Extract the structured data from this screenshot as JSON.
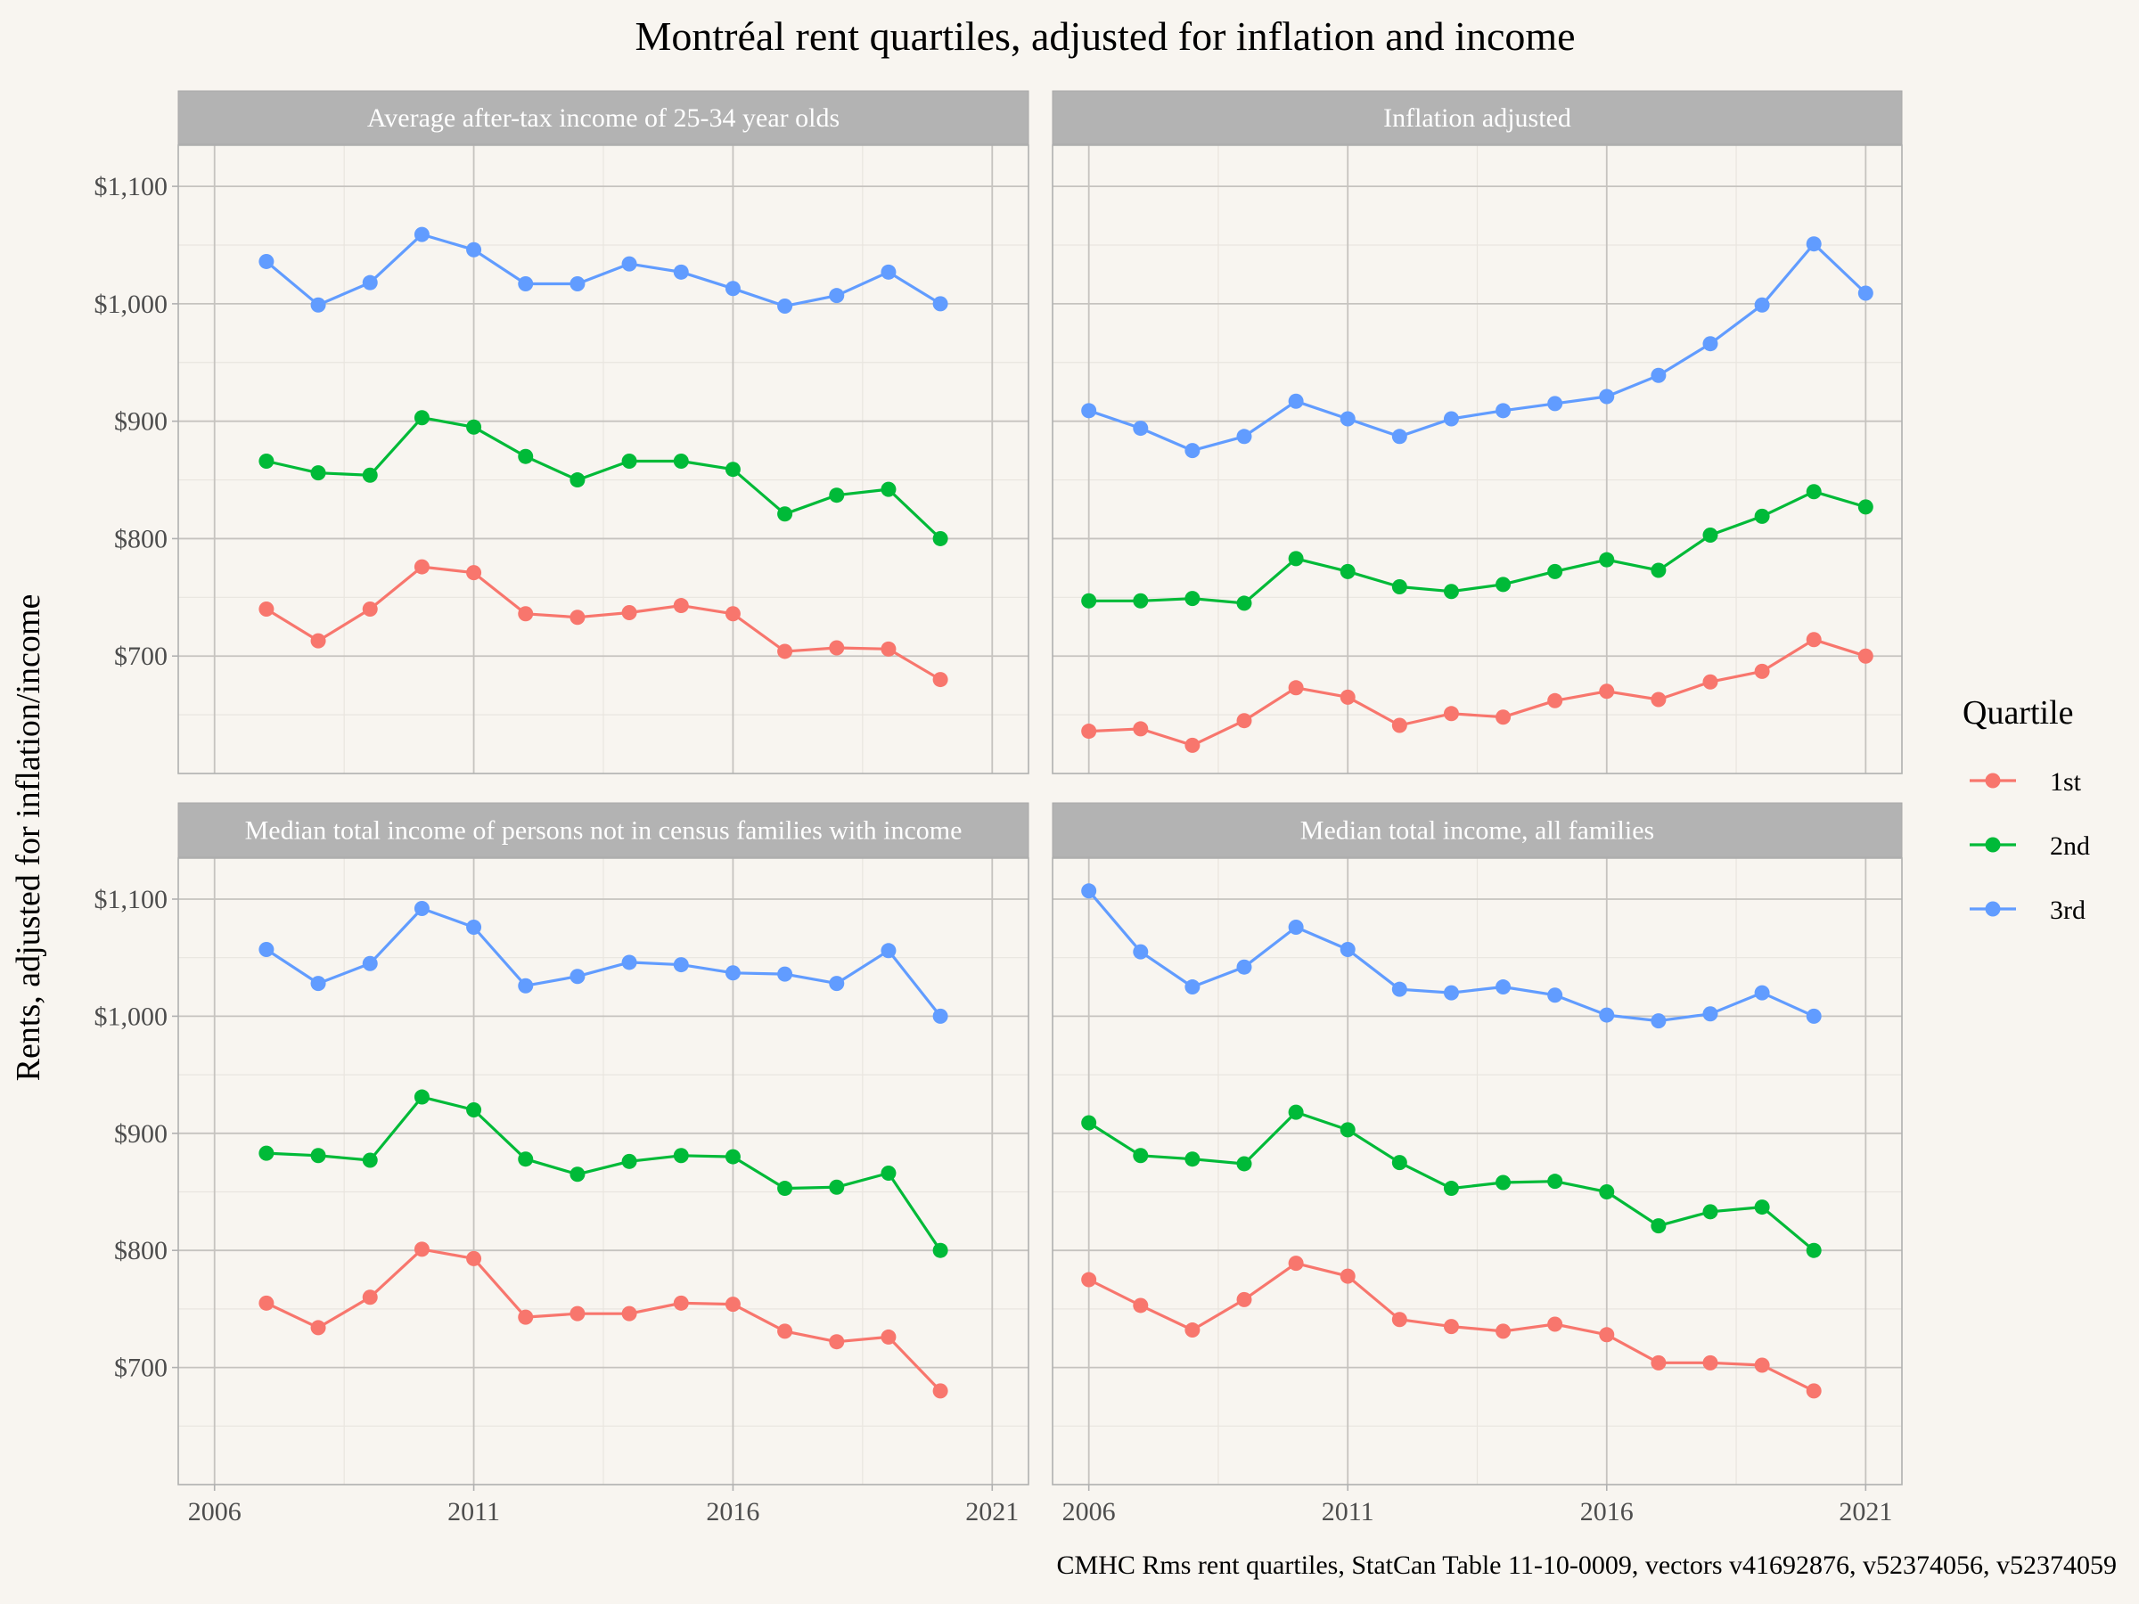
{
  "chart_data": {
    "type": "line",
    "title": "Montréal rent quartiles, adjusted for inflation and income",
    "xlabel": "",
    "ylabel": "Rents, adjusted for inflation/income",
    "caption": "CMHC Rms rent quartiles, StatCan Table 11-10-0009, vectors v41692876, v52374056, v52374059",
    "legend": {
      "title": "Quartile",
      "position": "right"
    },
    "colors": {
      "1st": "#f8766d",
      "2nd": "#00ba38",
      "3rd": "#619cff"
    },
    "xlim": [
      2005.3,
      2021.7
    ],
    "ylim": [
      600,
      1135
    ],
    "x_ticks": [
      "2006",
      "2011",
      "2016",
      "2021"
    ],
    "y_ticks": [
      "$700",
      "$800",
      "$900",
      "$1,000",
      "$1,100"
    ],
    "grid": true,
    "panels": [
      {
        "label": "Average after-tax income of 25-34 year olds",
        "x": [
          2007,
          2008,
          2009,
          2010,
          2011,
          2012,
          2013,
          2014,
          2015,
          2016,
          2017,
          2018,
          2019,
          2020
        ],
        "series": [
          {
            "name": "1st",
            "values": [
              740,
              713,
              740,
              776,
              771,
              736,
              733,
              737,
              743,
              736,
              704,
              707,
              706,
              680
            ]
          },
          {
            "name": "2nd",
            "values": [
              866,
              856,
              854,
              903,
              895,
              870,
              850,
              866,
              866,
              859,
              821,
              837,
              842,
              800
            ]
          },
          {
            "name": "3rd",
            "values": [
              1036,
              999,
              1018,
              1059,
              1046,
              1017,
              1017,
              1034,
              1027,
              1013,
              998,
              1007,
              1027,
              1000
            ]
          }
        ]
      },
      {
        "label": "Inflation adjusted",
        "x": [
          2006,
          2007,
          2008,
          2009,
          2010,
          2011,
          2012,
          2013,
          2014,
          2015,
          2016,
          2017,
          2018,
          2019,
          2020,
          2021
        ],
        "series": [
          {
            "name": "1st",
            "values": [
              636,
              638,
              624,
              645,
              673,
              665,
              641,
              651,
              648,
              662,
              670,
              663,
              678,
              687,
              714,
              700
            ]
          },
          {
            "name": "2nd",
            "values": [
              747,
              747,
              749,
              745,
              783,
              772,
              759,
              755,
              761,
              772,
              782,
              773,
              803,
              819,
              840,
              827
            ]
          },
          {
            "name": "3rd",
            "values": [
              909,
              894,
              875,
              887,
              917,
              902,
              887,
              902,
              909,
              915,
              921,
              939,
              966,
              999,
              1051,
              1009
            ]
          }
        ]
      },
      {
        "label": "Median total income of persons not in census families with income",
        "x": [
          2007,
          2008,
          2009,
          2010,
          2011,
          2012,
          2013,
          2014,
          2015,
          2016,
          2017,
          2018,
          2019,
          2020
        ],
        "series": [
          {
            "name": "1st",
            "values": [
              755,
              734,
              760,
              801,
              793,
              743,
              746,
              746,
              755,
              754,
              731,
              722,
              726,
              680
            ]
          },
          {
            "name": "2nd",
            "values": [
              883,
              881,
              877,
              931,
              920,
              878,
              865,
              876,
              881,
              880,
              853,
              854,
              866,
              800
            ]
          },
          {
            "name": "3rd",
            "values": [
              1057,
              1028,
              1045,
              1092,
              1076,
              1026,
              1034,
              1046,
              1044,
              1037,
              1036,
              1028,
              1056,
              1000
            ]
          }
        ]
      },
      {
        "label": "Median total income, all families",
        "x": [
          2006,
          2007,
          2008,
          2009,
          2010,
          2011,
          2012,
          2013,
          2014,
          2015,
          2016,
          2017,
          2018,
          2019,
          2020
        ],
        "series": [
          {
            "name": "1st",
            "values": [
              775,
              753,
              732,
              758,
              789,
              778,
              741,
              735,
              731,
              737,
              728,
              704,
              704,
              702,
              680
            ]
          },
          {
            "name": "2nd",
            "values": [
              909,
              881,
              878,
              874,
              918,
              903,
              875,
              853,
              858,
              859,
              850,
              821,
              833,
              837,
              800
            ]
          },
          {
            "name": "3rd",
            "values": [
              1107,
              1055,
              1025,
              1042,
              1076,
              1057,
              1023,
              1020,
              1025,
              1018,
              1001,
              996,
              1002,
              1020,
              1000
            ]
          }
        ]
      }
    ]
  }
}
